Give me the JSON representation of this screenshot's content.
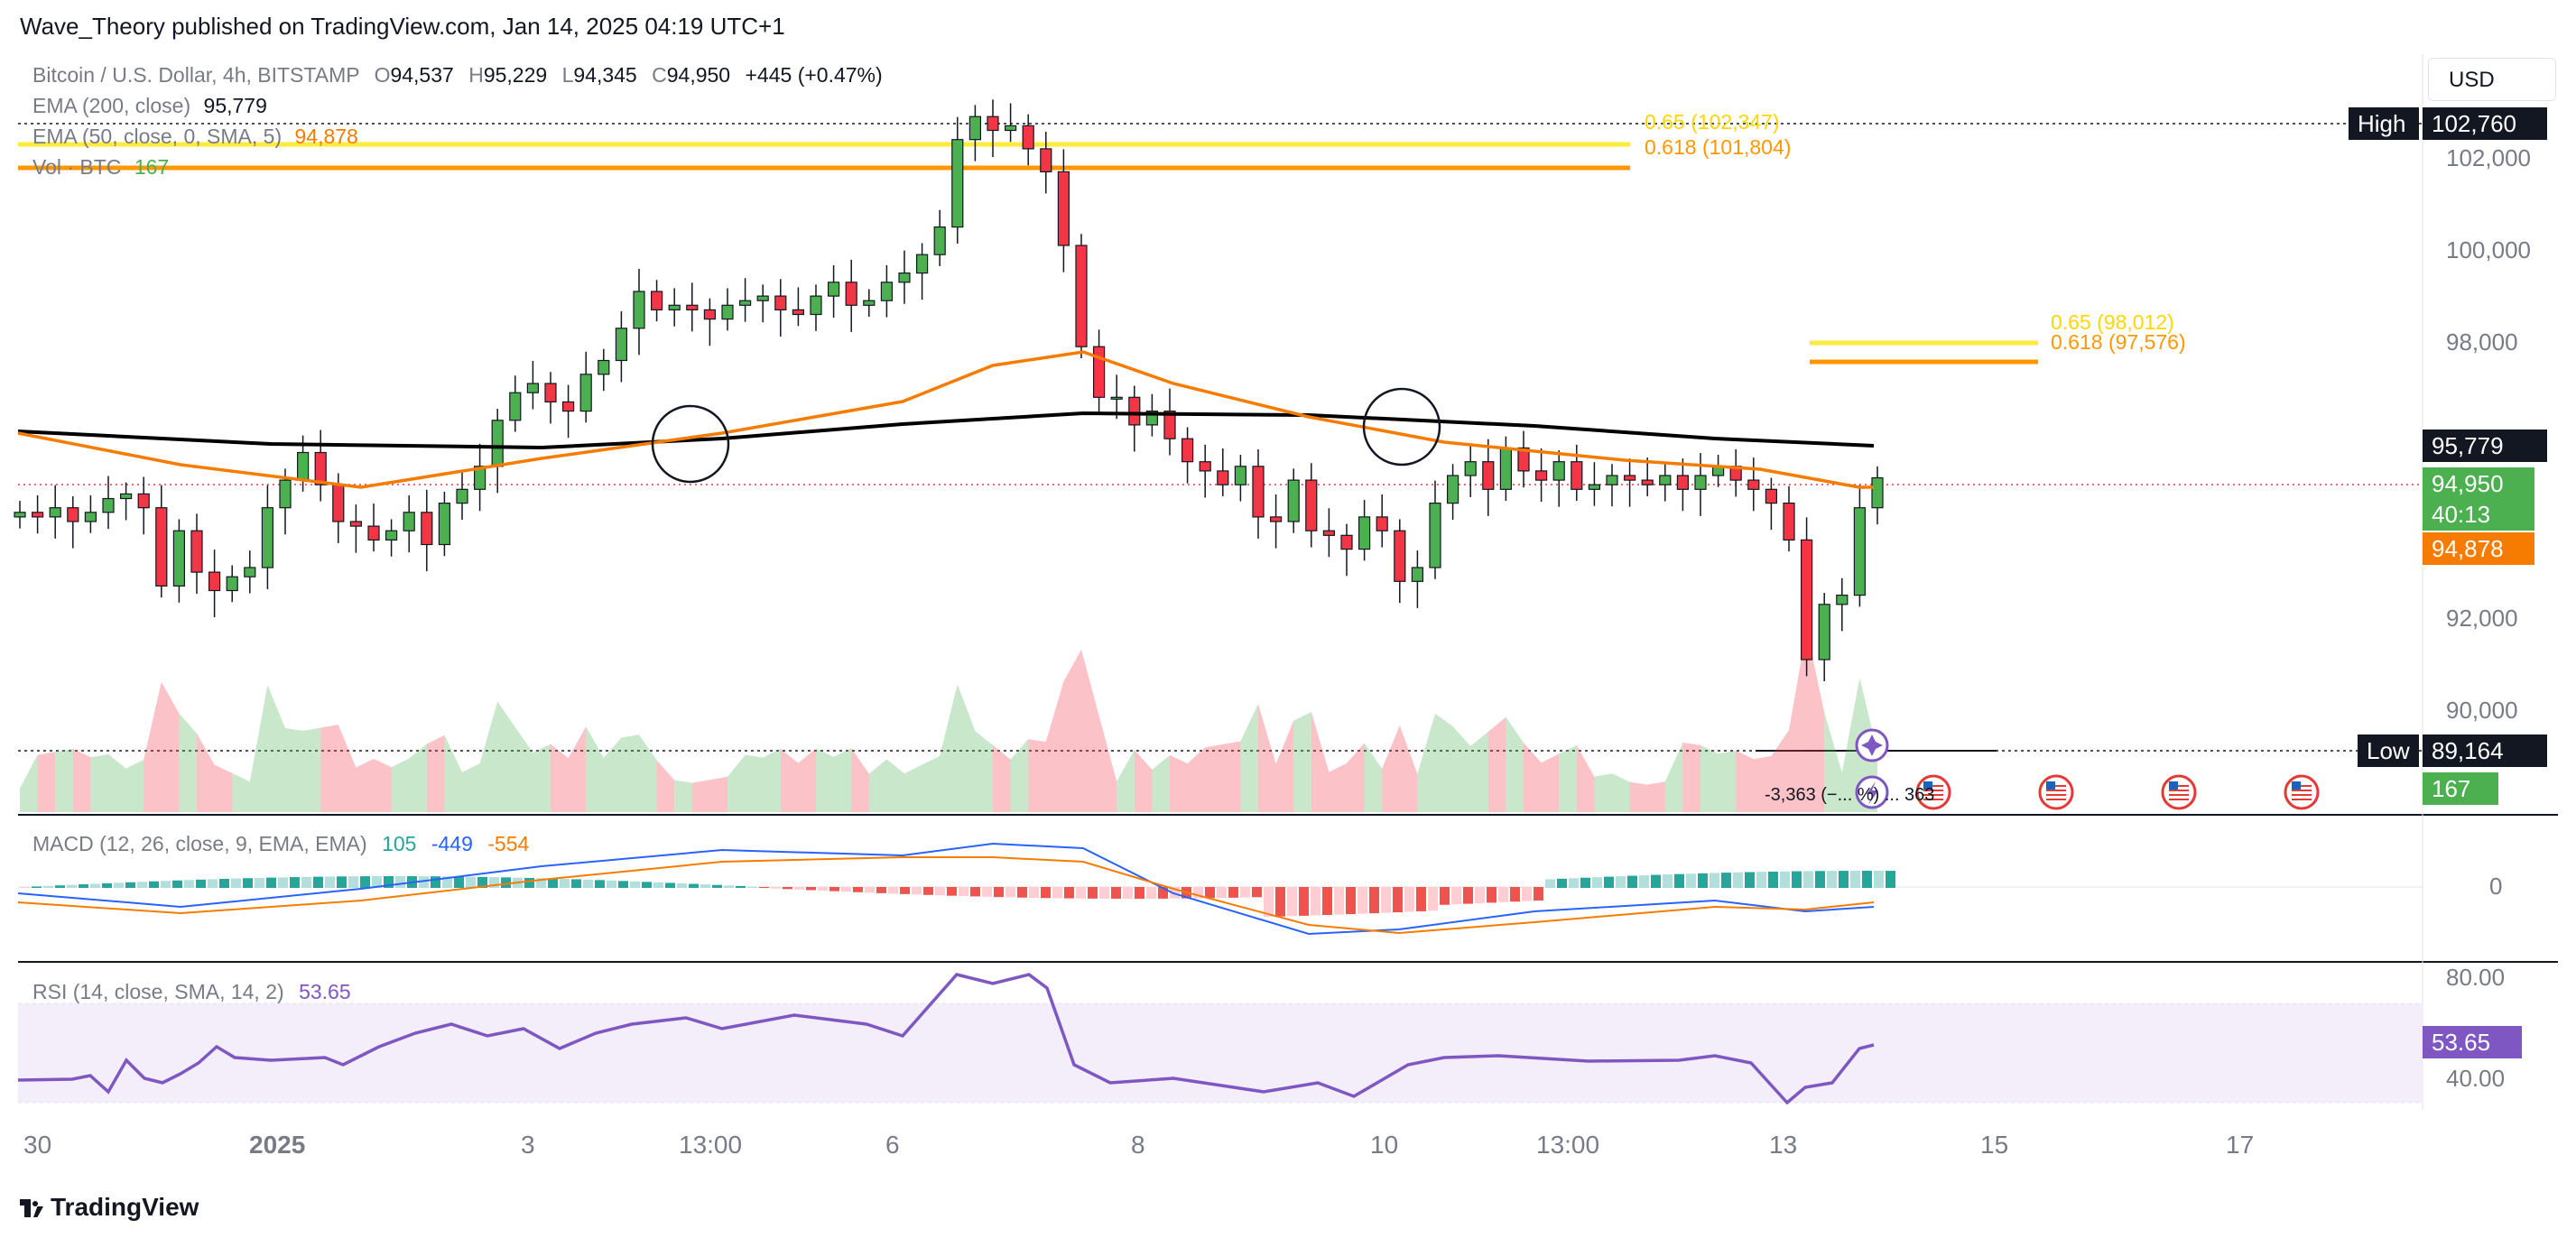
{
  "header": {
    "published_by": "Wave_Theory published on TradingView.com, Jan 14, 2025 04:19 UTC+1"
  },
  "legend": {
    "symbol": "Bitcoin / U.S. Dollar, 4h, BITSTAMP",
    "open_label": "O",
    "open": "94,537",
    "high_label": "H",
    "high": "95,229",
    "low_label": "L",
    "low": "94,345",
    "close_label": "C",
    "close": "94,950",
    "change": "+445 (+0.47%)",
    "ema200_label": "EMA (200, close)",
    "ema200_value": "95,779",
    "ema50_label": "EMA (50, close, 0, SMA, 5)",
    "ema50_value": "94,878",
    "vol_label": "Vol · BTC",
    "vol_value": "167"
  },
  "currency": "USD",
  "price_axis": {
    "ticks": [
      "102,000",
      "100,000",
      "98,000",
      "92,000",
      "90,000"
    ],
    "high_label": "High",
    "high_value": "102,760",
    "low_label": "Low",
    "low_value": "89,164",
    "ema200_tag": "95,779",
    "close_tag": "94,950",
    "countdown": "40:13",
    "ema50_tag": "94,878",
    "vol_tag": "167"
  },
  "fib": {
    "top_065": "0.65 (102,347)",
    "top_0618": "0.618 (101,804)",
    "mid_065": "0.65 (98,012)",
    "mid_0618": "0.618 (97,576)"
  },
  "macd": {
    "label": "MACD (12, 26, close, 9, EMA, EMA)",
    "hist": "105",
    "macd": "-449",
    "signal": "-554",
    "axis_zero": "0",
    "colors": {
      "macd": "#2962ff",
      "signal": "#f57c00",
      "hist_pos": "#26a69a",
      "hist_neg": "#ef5350"
    }
  },
  "rsi": {
    "label": "RSI (14, close, SMA, 14, 2)",
    "value": "53.65",
    "axis": [
      "80.00",
      "40.00"
    ],
    "color": "#7e57c2"
  },
  "overlay_text": "-3,363 (−... %) ... 363",
  "x_axis": [
    "30",
    "2025",
    "3",
    "13:00",
    "6",
    "8",
    "10",
    "13:00",
    "13",
    "15",
    "17"
  ],
  "brand": "TradingView",
  "colors": {
    "up": "#4caf50",
    "down": "#f23645",
    "ema200": "#000000",
    "ema50": "#f57c00",
    "fib_yellow": "#ffeb3b",
    "fib_orange": "#ff9800"
  }
}
